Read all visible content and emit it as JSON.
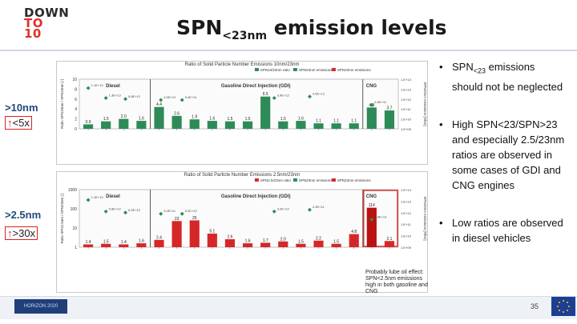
{
  "logo": {
    "line1": "DOWN",
    "line2": "TO",
    "line3": "10"
  },
  "title": {
    "main": "SPN",
    "sub": "<23nm",
    "rest": " emission levels"
  },
  "side": {
    "label_top": ">10nm",
    "box_top": "<5x",
    "label_bottom": ">2.5nm",
    "box_bottom": ">30x"
  },
  "chart_top": {
    "title": "Ratio of Solid Particle Number Emissions 10nm/23nm",
    "groups": [
      "Diesel",
      "Gasoline Direct Injection (GDI)",
      "CNG"
    ],
    "ylabel": "Ratio SPN10nm / SPN23nm [-]",
    "y2label": "SPN23nm emissions [#/km]",
    "legend": [
      "SPN10/23nm ratio",
      "SPN23nm emissions",
      "SPN23nm emissions"
    ],
    "yticks": [
      "10",
      "8",
      "6",
      "4",
      "2",
      "0"
    ],
    "y2ticks": [
      "1.E+14",
      "1.E+13",
      "1.E+12",
      "1.E+11",
      "1.E+10",
      "1.E+09"
    ],
    "bars": [
      0.9,
      1.5,
      2.0,
      1.6,
      4.4,
      2.6,
      1.9,
      1.6,
      1.5,
      1.5,
      6.5,
      1.5,
      1.6,
      1.1,
      1.1,
      1.1,
      4.3,
      3.7
    ],
    "bar_labels": [
      "0.9",
      "1.5",
      "2.0",
      "1.6",
      "4.4",
      "2.6",
      "1.9",
      "1.6",
      "1.5",
      "1.5",
      "6.5",
      "1.5",
      "1.6",
      "1.1",
      "1.1",
      "1.1",
      "4.3",
      "3.7"
    ],
    "annotations": [
      "1.1E+13",
      "1.3E+13",
      "5.8E+12",
      "2.5E+12",
      "9.4E+11",
      "3.9E+12",
      "4.5E+12",
      "4.6E+11"
    ]
  },
  "chart_bottom": {
    "title": "Ratio of Solid Particle Number Emissions 2.5nm/23nm",
    "groups": [
      "Diesel",
      "Gasoline Direct Injection (GDI)",
      "CNG"
    ],
    "ylabel": "Ratio SPN2.5nm / SPN23nm [-]",
    "y2label": "SPN23nm emissions [#/km]",
    "legend": [
      "SPN2.5/23nm ratio",
      "SPN23nm emissions",
      "SPN23nm emissions"
    ],
    "yticks": [
      "1000",
      "100",
      "10",
      "1"
    ],
    "y2ticks": [
      "1.E+14",
      "1.E+13",
      "1.E+12",
      "1.E+11",
      "1.E+10",
      "1.E+09"
    ],
    "bars": [
      1.4,
      1.5,
      1.4,
      1.6,
      2.4,
      23,
      25,
      5.1,
      2.6,
      1.6,
      1.7,
      2.0,
      1.5,
      2.2,
      1.5,
      4.8,
      114,
      2.1
    ],
    "bar_labels": [
      "1.4",
      "1.5",
      "1.4",
      "1.6",
      "2.4",
      "23",
      "25",
      "5.1",
      "2.6",
      "1.6",
      "1.7",
      "2.0",
      "1.5",
      "2.2",
      "1.5",
      "4.8",
      "114",
      "2.1"
    ],
    "annotations": [
      "1.1E+13",
      "5.8E+12",
      "5.2E+12",
      "3.4E+11",
      "5.2E+12",
      "3.2E+12",
      "2.3E+11",
      "1.6E+13"
    ]
  },
  "bullets": {
    "b1_pre": "SPN",
    "b1_sub": "<23",
    "b1_post": " emissions should not be neglected",
    "b2": "High SPN<23/SPN>23 and especially 2.5/23nm ratios are observed in some cases of GDI and CNG engines",
    "b3": "Low ratios are observed in diesel vehicles"
  },
  "note": {
    "text": "Probably lube oil effect: SPN<2.5nm emissions high in both gasoline and CNG"
  },
  "footer": {
    "page": "35",
    "left_logo": "HORIZON 2020"
  },
  "colors": {
    "accent_blue": "#1f4a7c",
    "bar_green": "#2e8b57",
    "bar_red": "#d62728",
    "box_red": "#e02020"
  }
}
